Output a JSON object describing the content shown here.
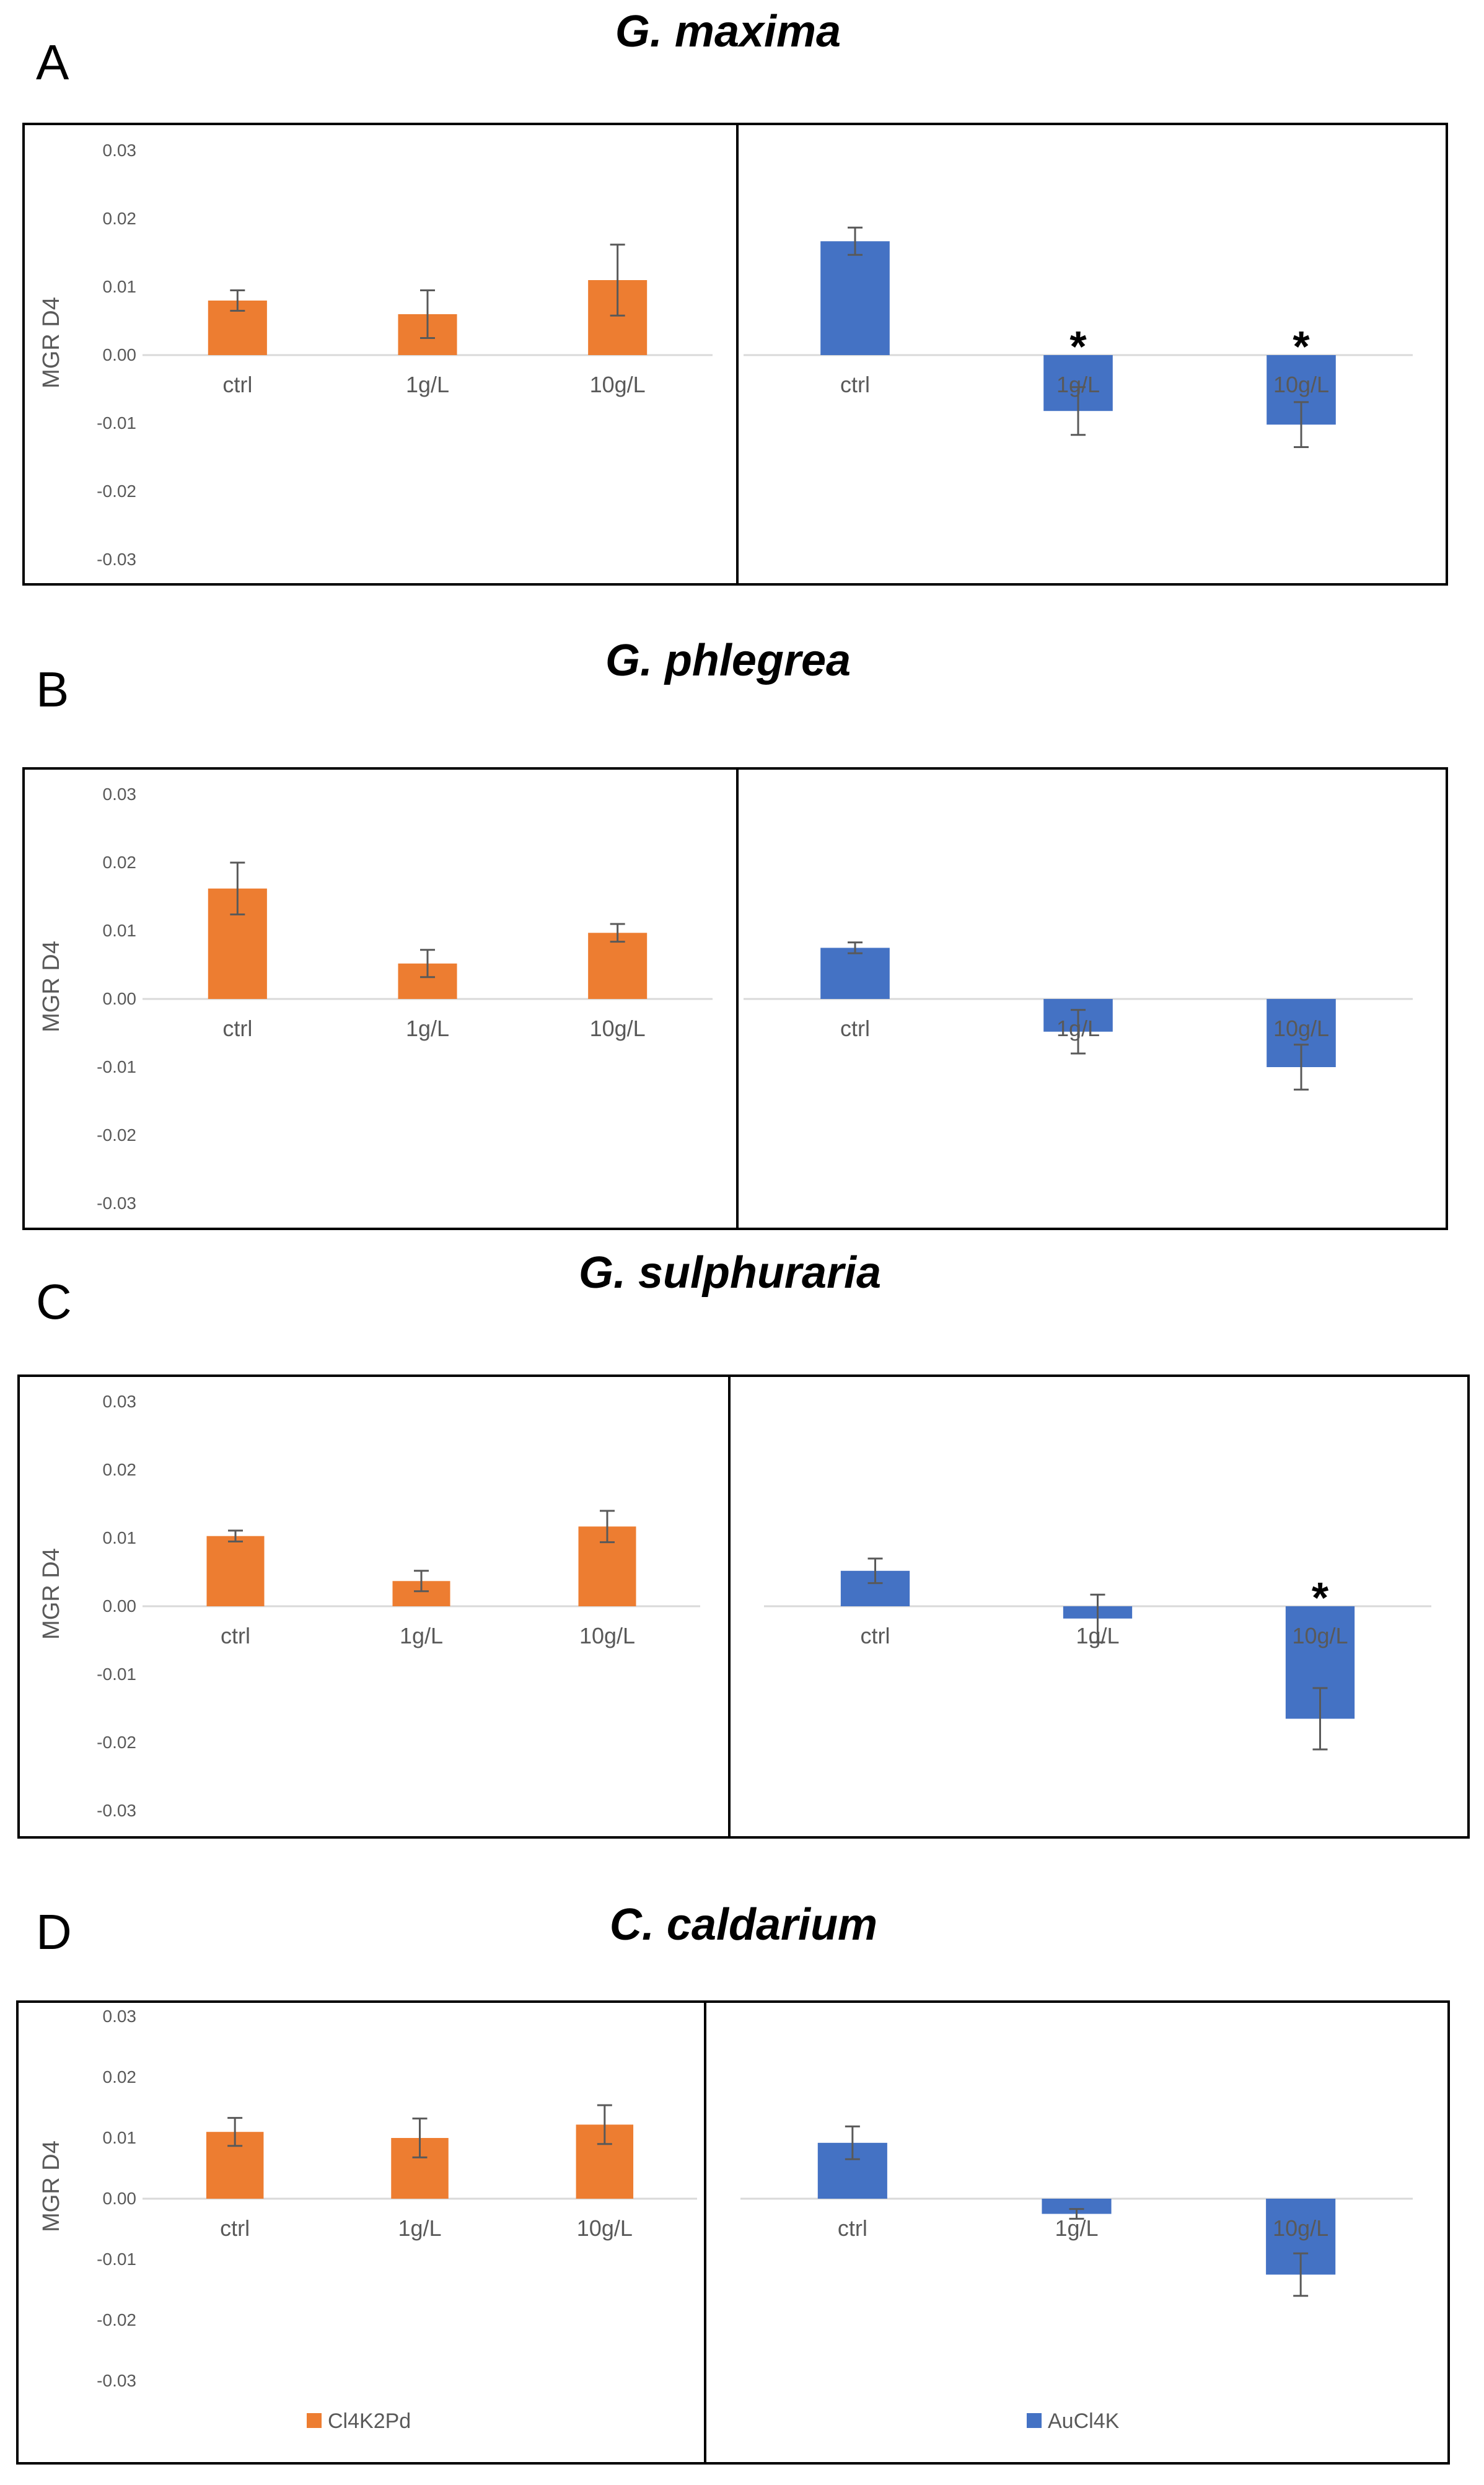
{
  "chart_data": [
    {
      "type": "bar",
      "panel_label": "A",
      "title": "G. maxima",
      "ylabel": "MGR  D4",
      "yticks": [
        "0.03",
        "0.02",
        "0.01",
        "0.00",
        "-0.01",
        "-0.02",
        "-0.03"
      ],
      "ylim": [
        -0.03,
        0.03
      ],
      "categories": [
        "ctrl",
        "1g/L",
        "10g/L"
      ],
      "series": [
        {
          "name": "Cl4K2Pd",
          "color": "#ED7D31",
          "values": [
            0.008,
            0.006,
            0.011
          ],
          "errors": [
            0.0015,
            0.0035,
            0.0052
          ],
          "stars": [
            false,
            false,
            false
          ]
        },
        {
          "name": "AuCl4K",
          "color": "#4472C4",
          "values": [
            0.0167,
            -0.0082,
            -0.0102
          ],
          "errors": [
            0.002,
            0.0035,
            0.0033
          ],
          "stars": [
            false,
            true,
            true
          ]
        }
      ]
    },
    {
      "type": "bar",
      "panel_label": "B",
      "title": "G. phlegrea",
      "ylabel": "MGR  D4",
      "yticks": [
        "0.03",
        "0.02",
        "0.01",
        "0.00",
        "-0.01",
        "-0.02",
        "-0.03"
      ],
      "ylim": [
        -0.03,
        0.03
      ],
      "categories": [
        "ctrl",
        "1g/L",
        "10g/L"
      ],
      "series": [
        {
          "name": "Cl4K2Pd",
          "color": "#ED7D31",
          "values": [
            0.0162,
            0.0052,
            0.0097
          ],
          "errors": [
            0.0038,
            0.002,
            0.0013
          ],
          "stars": [
            false,
            false,
            false
          ]
        },
        {
          "name": "AuCl4K",
          "color": "#4472C4",
          "values": [
            0.0075,
            -0.0048,
            -0.01
          ],
          "errors": [
            0.0008,
            0.0032,
            0.0033
          ],
          "stars": [
            false,
            false,
            false
          ]
        }
      ]
    },
    {
      "type": "bar",
      "panel_label": "C",
      "title": "G. sulphuraria",
      "ylabel": "MGR  D4",
      "yticks": [
        "0.03",
        "0.02",
        "0.01",
        "0.00",
        "-0.01",
        "-0.02",
        "-0.03"
      ],
      "ylim": [
        -0.03,
        0.03
      ],
      "categories": [
        "ctrl",
        "1g/L",
        "10g/L"
      ],
      "series": [
        {
          "name": "Cl4K2Pd",
          "color": "#ED7D31",
          "values": [
            0.0103,
            0.0037,
            0.0117
          ],
          "errors": [
            0.0008,
            0.0015,
            0.0023
          ],
          "stars": [
            false,
            false,
            false
          ]
        },
        {
          "name": "AuCl4K",
          "color": "#4472C4",
          "values": [
            0.0052,
            -0.0018,
            -0.0165
          ],
          "errors": [
            0.0018,
            0.0035,
            0.0045
          ],
          "stars": [
            false,
            false,
            true
          ]
        }
      ]
    },
    {
      "type": "bar",
      "panel_label": "D",
      "title": "C. caldarium",
      "ylabel": "MGR  D4",
      "yticks": [
        "0.03",
        "0.02",
        "0.01",
        "0.00",
        "-0.01",
        "-0.02",
        "-0.03"
      ],
      "ylim": [
        -0.03,
        0.03
      ],
      "categories": [
        "ctrl",
        "1g/L",
        "10g/L"
      ],
      "legend": [
        "Cl4K2Pd",
        "AuCl4K"
      ],
      "series": [
        {
          "name": "Cl4K2Pd",
          "color": "#ED7D31",
          "values": [
            0.011,
            0.01,
            0.0122
          ],
          "errors": [
            0.0023,
            0.0032,
            0.0032
          ],
          "stars": [
            false,
            false,
            false
          ]
        },
        {
          "name": "AuCl4K",
          "color": "#4472C4",
          "values": [
            0.0092,
            -0.0025,
            -0.0125
          ],
          "errors": [
            0.0027,
            0.0008,
            0.0035
          ],
          "stars": [
            false,
            false,
            false
          ]
        }
      ]
    }
  ]
}
